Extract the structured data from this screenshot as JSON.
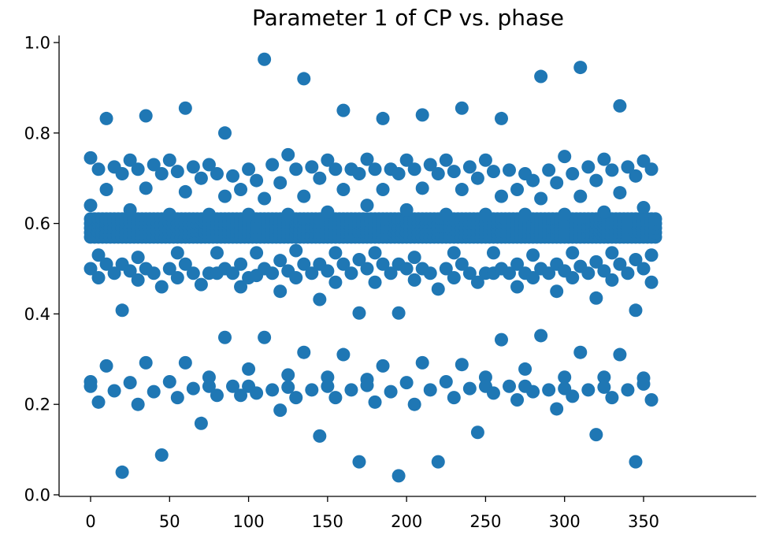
{
  "chart_data": {
    "type": "scatter",
    "title": "Parameter 1 of CP vs. phase",
    "xlabel": "",
    "ylabel": "",
    "xlim": [
      -10,
      365
    ],
    "ylim": [
      0.0,
      1.0
    ],
    "xticks": [
      0,
      50,
      100,
      150,
      200,
      250,
      300,
      350
    ],
    "yticks": [
      0.0,
      0.2,
      0.4,
      0.6,
      0.8,
      1.0
    ],
    "xtick_labels": [
      "0",
      "50",
      "100",
      "150",
      "200",
      "250",
      "300",
      "350"
    ],
    "ytick_labels": [
      "0.0",
      "0.2",
      "0.4",
      "0.6",
      "0.8",
      "1.0"
    ],
    "grid": false,
    "marker_color": "#1f77b4",
    "x_step": 2.5,
    "x_max": 357.5,
    "band_values": [
      0.57,
      0.58,
      0.59,
      0.6,
      0.61
    ],
    "points": [
      [
        0,
        0.745
      ],
      [
        0,
        0.64
      ],
      [
        0,
        0.5
      ],
      [
        0,
        0.25
      ],
      [
        0,
        0.24
      ],
      [
        5,
        0.72
      ],
      [
        5,
        0.53
      ],
      [
        5,
        0.48
      ],
      [
        5,
        0.205
      ],
      [
        10,
        0.832
      ],
      [
        10,
        0.675
      ],
      [
        10,
        0.51
      ],
      [
        10,
        0.285
      ],
      [
        15,
        0.725
      ],
      [
        15,
        0.49
      ],
      [
        15,
        0.23
      ],
      [
        20,
        0.71
      ],
      [
        20,
        0.51
      ],
      [
        20,
        0.408
      ],
      [
        20,
        0.05
      ],
      [
        25,
        0.74
      ],
      [
        25,
        0.63
      ],
      [
        25,
        0.495
      ],
      [
        25,
        0.248
      ],
      [
        30,
        0.72
      ],
      [
        30,
        0.525
      ],
      [
        30,
        0.475
      ],
      [
        30,
        0.2
      ],
      [
        35,
        0.838
      ],
      [
        35,
        0.678
      ],
      [
        35,
        0.5
      ],
      [
        35,
        0.292
      ],
      [
        40,
        0.73
      ],
      [
        40,
        0.49
      ],
      [
        40,
        0.228
      ],
      [
        45,
        0.71
      ],
      [
        45,
        0.46
      ],
      [
        45,
        0.088
      ],
      [
        50,
        0.74
      ],
      [
        50,
        0.62
      ],
      [
        50,
        0.5
      ],
      [
        50,
        0.25
      ],
      [
        55,
        0.715
      ],
      [
        55,
        0.535
      ],
      [
        55,
        0.48
      ],
      [
        55,
        0.215
      ],
      [
        60,
        0.855
      ],
      [
        60,
        0.67
      ],
      [
        60,
        0.51
      ],
      [
        60,
        0.292
      ],
      [
        65,
        0.725
      ],
      [
        65,
        0.49
      ],
      [
        65,
        0.235
      ],
      [
        70,
        0.7
      ],
      [
        70,
        0.465
      ],
      [
        70,
        0.158
      ],
      [
        75,
        0.73
      ],
      [
        75,
        0.62
      ],
      [
        75,
        0.49
      ],
      [
        75,
        0.26
      ],
      [
        75,
        0.24
      ],
      [
        80,
        0.71
      ],
      [
        80,
        0.535
      ],
      [
        80,
        0.49
      ],
      [
        80,
        0.22
      ],
      [
        85,
        0.8
      ],
      [
        85,
        0.66
      ],
      [
        85,
        0.5
      ],
      [
        85,
        0.348
      ],
      [
        90,
        0.705
      ],
      [
        90,
        0.49
      ],
      [
        90,
        0.24
      ],
      [
        95,
        0.675
      ],
      [
        95,
        0.51
      ],
      [
        95,
        0.46
      ],
      [
        95,
        0.22
      ],
      [
        100,
        0.72
      ],
      [
        100,
        0.62
      ],
      [
        100,
        0.48
      ],
      [
        100,
        0.278
      ],
      [
        100,
        0.24
      ],
      [
        105,
        0.695
      ],
      [
        105,
        0.535
      ],
      [
        105,
        0.485
      ],
      [
        105,
        0.225
      ],
      [
        110,
        0.963
      ],
      [
        110,
        0.655
      ],
      [
        110,
        0.5
      ],
      [
        110,
        0.348
      ],
      [
        115,
        0.73
      ],
      [
        115,
        0.49
      ],
      [
        115,
        0.232
      ],
      [
        120,
        0.69
      ],
      [
        120,
        0.518
      ],
      [
        120,
        0.45
      ],
      [
        120,
        0.187
      ],
      [
        125,
        0.752
      ],
      [
        125,
        0.62
      ],
      [
        125,
        0.495
      ],
      [
        125,
        0.265
      ],
      [
        125,
        0.238
      ],
      [
        130,
        0.72
      ],
      [
        130,
        0.54
      ],
      [
        130,
        0.48
      ],
      [
        130,
        0.215
      ],
      [
        135,
        0.92
      ],
      [
        135,
        0.66
      ],
      [
        135,
        0.51
      ],
      [
        135,
        0.315
      ],
      [
        140,
        0.725
      ],
      [
        140,
        0.49
      ],
      [
        140,
        0.232
      ],
      [
        145,
        0.7
      ],
      [
        145,
        0.51
      ],
      [
        145,
        0.432
      ],
      [
        145,
        0.13
      ],
      [
        150,
        0.74
      ],
      [
        150,
        0.625
      ],
      [
        150,
        0.495
      ],
      [
        150,
        0.26
      ],
      [
        150,
        0.24
      ],
      [
        155,
        0.72
      ],
      [
        155,
        0.535
      ],
      [
        155,
        0.47
      ],
      [
        155,
        0.215
      ],
      [
        160,
        0.85
      ],
      [
        160,
        0.675
      ],
      [
        160,
        0.51
      ],
      [
        160,
        0.31
      ],
      [
        165,
        0.72
      ],
      [
        165,
        0.49
      ],
      [
        165,
        0.232
      ],
      [
        170,
        0.71
      ],
      [
        170,
        0.52
      ],
      [
        170,
        0.402
      ],
      [
        170,
        0.073
      ],
      [
        175,
        0.742
      ],
      [
        175,
        0.64
      ],
      [
        175,
        0.5
      ],
      [
        175,
        0.255
      ],
      [
        175,
        0.242
      ],
      [
        180,
        0.72
      ],
      [
        180,
        0.535
      ],
      [
        180,
        0.47
      ],
      [
        180,
        0.205
      ],
      [
        185,
        0.832
      ],
      [
        185,
        0.675
      ],
      [
        185,
        0.51
      ],
      [
        185,
        0.285
      ],
      [
        190,
        0.72
      ],
      [
        190,
        0.49
      ],
      [
        190,
        0.228
      ],
      [
        195,
        0.71
      ],
      [
        195,
        0.51
      ],
      [
        195,
        0.402
      ],
      [
        195,
        0.042
      ],
      [
        200,
        0.74
      ],
      [
        200,
        0.63
      ],
      [
        200,
        0.5
      ],
      [
        200,
        0.248
      ],
      [
        205,
        0.72
      ],
      [
        205,
        0.525
      ],
      [
        205,
        0.475
      ],
      [
        205,
        0.2
      ],
      [
        210,
        0.84
      ],
      [
        210,
        0.678
      ],
      [
        210,
        0.5
      ],
      [
        210,
        0.292
      ],
      [
        215,
        0.73
      ],
      [
        215,
        0.49
      ],
      [
        215,
        0.232
      ],
      [
        220,
        0.71
      ],
      [
        220,
        0.455
      ],
      [
        220,
        0.073
      ],
      [
        225,
        0.74
      ],
      [
        225,
        0.62
      ],
      [
        225,
        0.5
      ],
      [
        225,
        0.25
      ],
      [
        230,
        0.715
      ],
      [
        230,
        0.535
      ],
      [
        230,
        0.48
      ],
      [
        230,
        0.215
      ],
      [
        235,
        0.855
      ],
      [
        235,
        0.675
      ],
      [
        235,
        0.51
      ],
      [
        235,
        0.288
      ],
      [
        240,
        0.725
      ],
      [
        240,
        0.49
      ],
      [
        240,
        0.235
      ],
      [
        245,
        0.7
      ],
      [
        245,
        0.47
      ],
      [
        245,
        0.138
      ],
      [
        250,
        0.74
      ],
      [
        250,
        0.62
      ],
      [
        250,
        0.49
      ],
      [
        250,
        0.26
      ],
      [
        250,
        0.24
      ],
      [
        255,
        0.715
      ],
      [
        255,
        0.535
      ],
      [
        255,
        0.49
      ],
      [
        255,
        0.225
      ],
      [
        260,
        0.832
      ],
      [
        260,
        0.66
      ],
      [
        260,
        0.5
      ],
      [
        260,
        0.343
      ],
      [
        265,
        0.718
      ],
      [
        265,
        0.49
      ],
      [
        265,
        0.24
      ],
      [
        270,
        0.675
      ],
      [
        270,
        0.51
      ],
      [
        270,
        0.46
      ],
      [
        270,
        0.21
      ],
      [
        275,
        0.71
      ],
      [
        275,
        0.62
      ],
      [
        275,
        0.49
      ],
      [
        275,
        0.278
      ],
      [
        275,
        0.24
      ],
      [
        280,
        0.695
      ],
      [
        280,
        0.53
      ],
      [
        280,
        0.48
      ],
      [
        280,
        0.228
      ],
      [
        285,
        0.925
      ],
      [
        285,
        0.655
      ],
      [
        285,
        0.5
      ],
      [
        285,
        0.352
      ],
      [
        290,
        0.718
      ],
      [
        290,
        0.49
      ],
      [
        290,
        0.232
      ],
      [
        295,
        0.69
      ],
      [
        295,
        0.51
      ],
      [
        295,
        0.45
      ],
      [
        295,
        0.19
      ],
      [
        300,
        0.748
      ],
      [
        300,
        0.62
      ],
      [
        300,
        0.495
      ],
      [
        300,
        0.26
      ],
      [
        300,
        0.235
      ],
      [
        305,
        0.71
      ],
      [
        305,
        0.535
      ],
      [
        305,
        0.48
      ],
      [
        305,
        0.218
      ],
      [
        310,
        0.945
      ],
      [
        310,
        0.66
      ],
      [
        310,
        0.505
      ],
      [
        310,
        0.315
      ],
      [
        315,
        0.725
      ],
      [
        315,
        0.49
      ],
      [
        315,
        0.232
      ],
      [
        320,
        0.695
      ],
      [
        320,
        0.515
      ],
      [
        320,
        0.435
      ],
      [
        320,
        0.133
      ],
      [
        325,
        0.742
      ],
      [
        325,
        0.625
      ],
      [
        325,
        0.495
      ],
      [
        325,
        0.26
      ],
      [
        325,
        0.238
      ],
      [
        330,
        0.718
      ],
      [
        330,
        0.535
      ],
      [
        330,
        0.475
      ],
      [
        330,
        0.215
      ],
      [
        335,
        0.86
      ],
      [
        335,
        0.668
      ],
      [
        335,
        0.51
      ],
      [
        335,
        0.31
      ],
      [
        340,
        0.725
      ],
      [
        340,
        0.49
      ],
      [
        340,
        0.232
      ],
      [
        345,
        0.705
      ],
      [
        345,
        0.52
      ],
      [
        345,
        0.408
      ],
      [
        345,
        0.073
      ],
      [
        350,
        0.738
      ],
      [
        350,
        0.635
      ],
      [
        350,
        0.5
      ],
      [
        350,
        0.258
      ],
      [
        350,
        0.245
      ],
      [
        355,
        0.72
      ],
      [
        355,
        0.53
      ],
      [
        355,
        0.47
      ],
      [
        355,
        0.21
      ]
    ]
  }
}
